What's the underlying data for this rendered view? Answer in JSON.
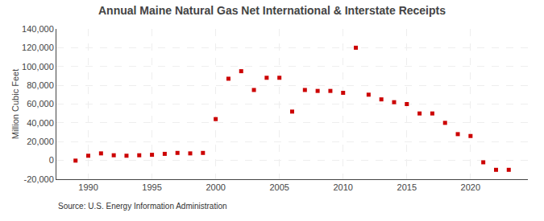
{
  "chart_data": {
    "type": "scatter",
    "title": "Annual Maine Natural Gas Net International & Interstate Receipts",
    "ylabel": "Million Cubic Feet",
    "annotations": [
      "Source: U.S. Energy Information Administration"
    ],
    "x": [
      1989,
      1990,
      1991,
      1992,
      1993,
      1994,
      1995,
      1996,
      1997,
      1998,
      1999,
      2000,
      2001,
      2002,
      2003,
      2004,
      2005,
      2006,
      2007,
      2008,
      2009,
      2010,
      2011,
      2012,
      2013,
      2014,
      2015,
      2016,
      2017,
      2018,
      2019,
      2020,
      2021,
      2022,
      2023
    ],
    "values": [
      -200,
      5000,
      7500,
      5500,
      5000,
      5500,
      6000,
      7000,
      8000,
      7500,
      8000,
      44000,
      87000,
      95000,
      75000,
      88000,
      88000,
      52000,
      75000,
      74000,
      74000,
      72000,
      120000,
      70000,
      65000,
      62000,
      60000,
      50000,
      50000,
      40000,
      28000,
      26000,
      -2000,
      -10000,
      -10000
    ],
    "color": "#cc0000",
    "marker": "square",
    "xlim": [
      1987.5,
      2024.5
    ],
    "xticks": [
      1990,
      1995,
      2000,
      2005,
      2010,
      2015,
      2020
    ],
    "ylim": [
      -20000,
      140000
    ],
    "yticks": [
      {
        "value": -20000,
        "label": "-20,000"
      },
      0,
      {
        "value": 20000,
        "label": "20,000"
      },
      {
        "value": 40000,
        "label": "40,000"
      },
      {
        "value": 60000,
        "label": "60,000"
      },
      {
        "value": 80000,
        "label": "80,000"
      },
      {
        "value": 100000,
        "label": "100,000"
      },
      {
        "value": 120000,
        "label": "120,000"
      },
      {
        "value": 140000,
        "label": "140,000"
      }
    ],
    "grid": true
  }
}
